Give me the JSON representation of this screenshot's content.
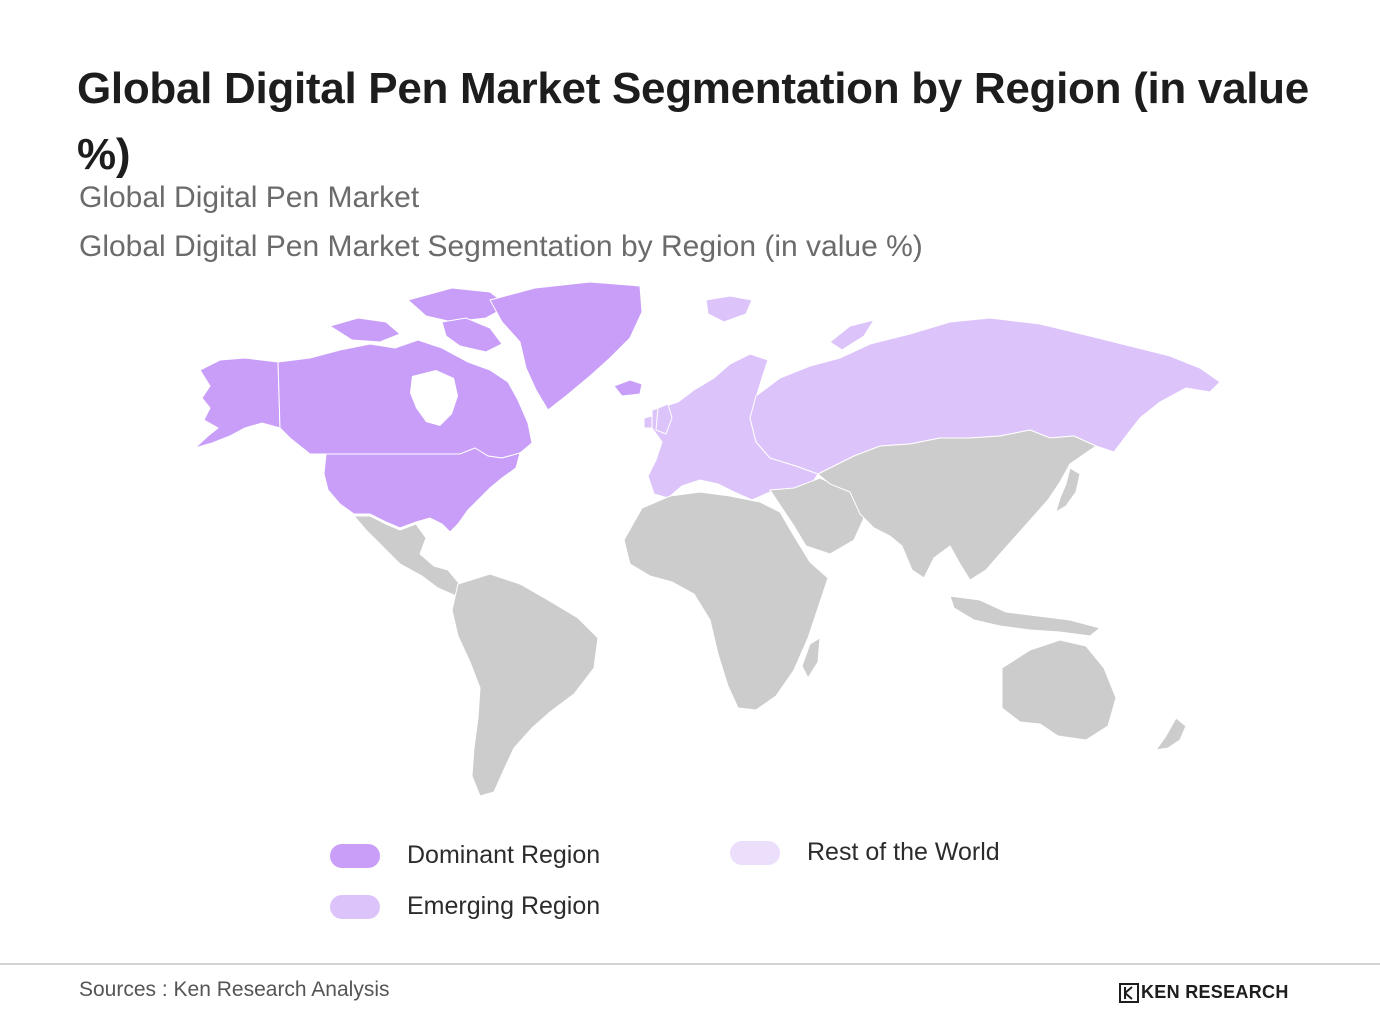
{
  "title": "Global Digital Pen Market Segmentation by Region (in value %)",
  "subtitle_1": "Global Digital Pen Market",
  "subtitle_2": "Global Digital Pen Market Segmentation by Region (in value %)",
  "map": {
    "default_color": "#cccccc",
    "border_color": "#ffffff",
    "regions": [
      {
        "name": "North America",
        "category": "Dominant Region"
      },
      {
        "name": "Greenland",
        "category": "Dominant Region"
      },
      {
        "name": "Europe",
        "category": "Emerging Region"
      },
      {
        "name": "Russia",
        "category": "Emerging Region"
      }
    ]
  },
  "legend": [
    {
      "label": "Dominant Region",
      "color": "#c89ef9"
    },
    {
      "label": "Emerging Region",
      "color": "#dcc4fb"
    },
    {
      "label": "Rest of the World",
      "color": "#ebdffc"
    }
  ],
  "footer": {
    "sources": "Sources : Ken Research Analysis",
    "brand": "KEN RESEARCH",
    "brand_icon": "ken-research-logo-icon"
  }
}
